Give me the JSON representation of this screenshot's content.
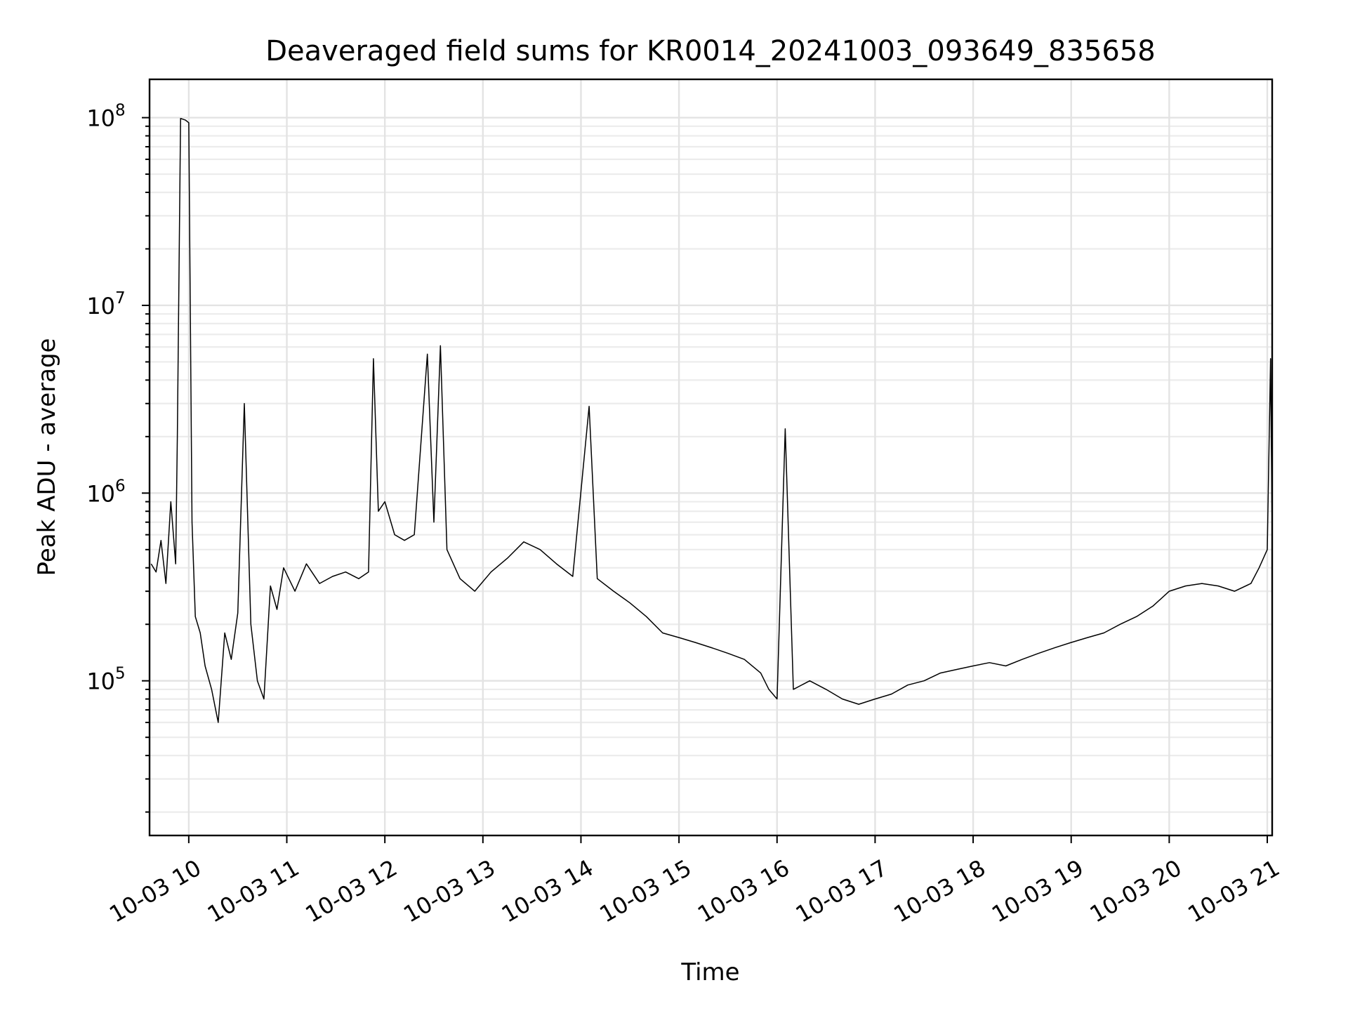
{
  "chart_data": {
    "type": "line",
    "title": "Deaveraged field sums for KR0014_20241003_093649_835658",
    "xlabel": "Time",
    "ylabel": "Peak ADU - average",
    "x_ticks": [
      "10-03 10",
      "10-03 11",
      "10-03 12",
      "10-03 13",
      "10-03 14",
      "10-03 15",
      "10-03 16",
      "10-03 17",
      "10-03 18",
      "10-03 19",
      "10-03 20",
      "10-03 21"
    ],
    "y_ticks": [
      {
        "base": "10",
        "exp": "5"
      },
      {
        "base": "10",
        "exp": "6"
      },
      {
        "base": "10",
        "exp": "7"
      },
      {
        "base": "10",
        "exp": "8"
      }
    ],
    "xlim": [
      "2024-10-03 09:36",
      "2024-10-03 21:03"
    ],
    "ylim": [
      15000,
      160000000
    ],
    "yscale": "log",
    "grid": "on (major and minor)",
    "line_color": "#000000",
    "series_points": [
      [
        "2024-10-03 09:37",
        420000
      ],
      [
        "2024-10-03 09:40",
        380000
      ],
      [
        "2024-10-03 09:43",
        560000
      ],
      [
        "2024-10-03 09:46",
        330000
      ],
      [
        "2024-10-03 09:49",
        900000
      ],
      [
        "2024-10-03 09:52",
        420000
      ],
      [
        "2024-10-03 09:53",
        2000000
      ],
      [
        "2024-10-03 09:55",
        99000000
      ],
      [
        "2024-10-03 09:58",
        97000000
      ],
      [
        "2024-10-03 10:00",
        94000000
      ],
      [
        "2024-10-03 10:02",
        700000
      ],
      [
        "2024-10-03 10:04",
        220000
      ],
      [
        "2024-10-03 10:07",
        180000
      ],
      [
        "2024-10-03 10:10",
        120000
      ],
      [
        "2024-10-03 10:14",
        90000
      ],
      [
        "2024-10-03 10:18",
        60000
      ],
      [
        "2024-10-03 10:22",
        180000
      ],
      [
        "2024-10-03 10:26",
        130000
      ],
      [
        "2024-10-03 10:30",
        230000
      ],
      [
        "2024-10-03 10:34",
        3000000
      ],
      [
        "2024-10-03 10:38",
        200000
      ],
      [
        "2024-10-03 10:42",
        100000
      ],
      [
        "2024-10-03 10:46",
        80000
      ],
      [
        "2024-10-03 10:50",
        320000
      ],
      [
        "2024-10-03 10:54",
        240000
      ],
      [
        "2024-10-03 10:58",
        400000
      ],
      [
        "2024-10-03 11:05",
        300000
      ],
      [
        "2024-10-03 11:12",
        420000
      ],
      [
        "2024-10-03 11:20",
        330000
      ],
      [
        "2024-10-03 11:28",
        360000
      ],
      [
        "2024-10-03 11:36",
        380000
      ],
      [
        "2024-10-03 11:44",
        350000
      ],
      [
        "2024-10-03 11:50",
        380000
      ],
      [
        "2024-10-03 11:53",
        5200000
      ],
      [
        "2024-10-03 11:56",
        800000
      ],
      [
        "2024-10-03 12:00",
        900000
      ],
      [
        "2024-10-03 12:06",
        600000
      ],
      [
        "2024-10-03 12:12",
        560000
      ],
      [
        "2024-10-03 12:18",
        600000
      ],
      [
        "2024-10-03 12:26",
        5500000
      ],
      [
        "2024-10-03 12:30",
        700000
      ],
      [
        "2024-10-03 12:34",
        6100000
      ],
      [
        "2024-10-03 12:38",
        500000
      ],
      [
        "2024-10-03 12:46",
        350000
      ],
      [
        "2024-10-03 12:55",
        300000
      ],
      [
        "2024-10-03 13:05",
        380000
      ],
      [
        "2024-10-03 13:15",
        450000
      ],
      [
        "2024-10-03 13:25",
        550000
      ],
      [
        "2024-10-03 13:35",
        500000
      ],
      [
        "2024-10-03 13:45",
        420000
      ],
      [
        "2024-10-03 13:55",
        360000
      ],
      [
        "2024-10-03 14:05",
        2900000
      ],
      [
        "2024-10-03 14:10",
        350000
      ],
      [
        "2024-10-03 14:20",
        300000
      ],
      [
        "2024-10-03 14:30",
        260000
      ],
      [
        "2024-10-03 14:40",
        220000
      ],
      [
        "2024-10-03 14:50",
        180000
      ],
      [
        "2024-10-03 15:00",
        170000
      ],
      [
        "2024-10-03 15:10",
        160000
      ],
      [
        "2024-10-03 15:20",
        150000
      ],
      [
        "2024-10-03 15:30",
        140000
      ],
      [
        "2024-10-03 15:40",
        130000
      ],
      [
        "2024-10-03 15:50",
        110000
      ],
      [
        "2024-10-03 15:55",
        90000
      ],
      [
        "2024-10-03 16:00",
        80000
      ],
      [
        "2024-10-03 16:05",
        2200000
      ],
      [
        "2024-10-03 16:10",
        90000
      ],
      [
        "2024-10-03 16:20",
        100000
      ],
      [
        "2024-10-03 16:30",
        90000
      ],
      [
        "2024-10-03 16:40",
        80000
      ],
      [
        "2024-10-03 16:50",
        75000
      ],
      [
        "2024-10-03 17:00",
        80000
      ],
      [
        "2024-10-03 17:10",
        85000
      ],
      [
        "2024-10-03 17:20",
        95000
      ],
      [
        "2024-10-03 17:30",
        100000
      ],
      [
        "2024-10-03 17:40",
        110000
      ],
      [
        "2024-10-03 17:50",
        115000
      ],
      [
        "2024-10-03 18:00",
        120000
      ],
      [
        "2024-10-03 18:10",
        125000
      ],
      [
        "2024-10-03 18:20",
        120000
      ],
      [
        "2024-10-03 18:30",
        130000
      ],
      [
        "2024-10-03 18:40",
        140000
      ],
      [
        "2024-10-03 18:50",
        150000
      ],
      [
        "2024-10-03 19:00",
        160000
      ],
      [
        "2024-10-03 19:10",
        170000
      ],
      [
        "2024-10-03 19:20",
        180000
      ],
      [
        "2024-10-03 19:30",
        200000
      ],
      [
        "2024-10-03 19:40",
        220000
      ],
      [
        "2024-10-03 19:50",
        250000
      ],
      [
        "2024-10-03 20:00",
        300000
      ],
      [
        "2024-10-03 20:10",
        320000
      ],
      [
        "2024-10-03 20:20",
        330000
      ],
      [
        "2024-10-03 20:30",
        320000
      ],
      [
        "2024-10-03 20:40",
        300000
      ],
      [
        "2024-10-03 20:50",
        330000
      ],
      [
        "2024-10-03 20:55",
        400000
      ],
      [
        "2024-10-03 21:00",
        500000
      ],
      [
        "2024-10-03 21:02",
        5200000
      ],
      [
        "2024-10-03 21:03",
        600000
      ]
    ]
  }
}
